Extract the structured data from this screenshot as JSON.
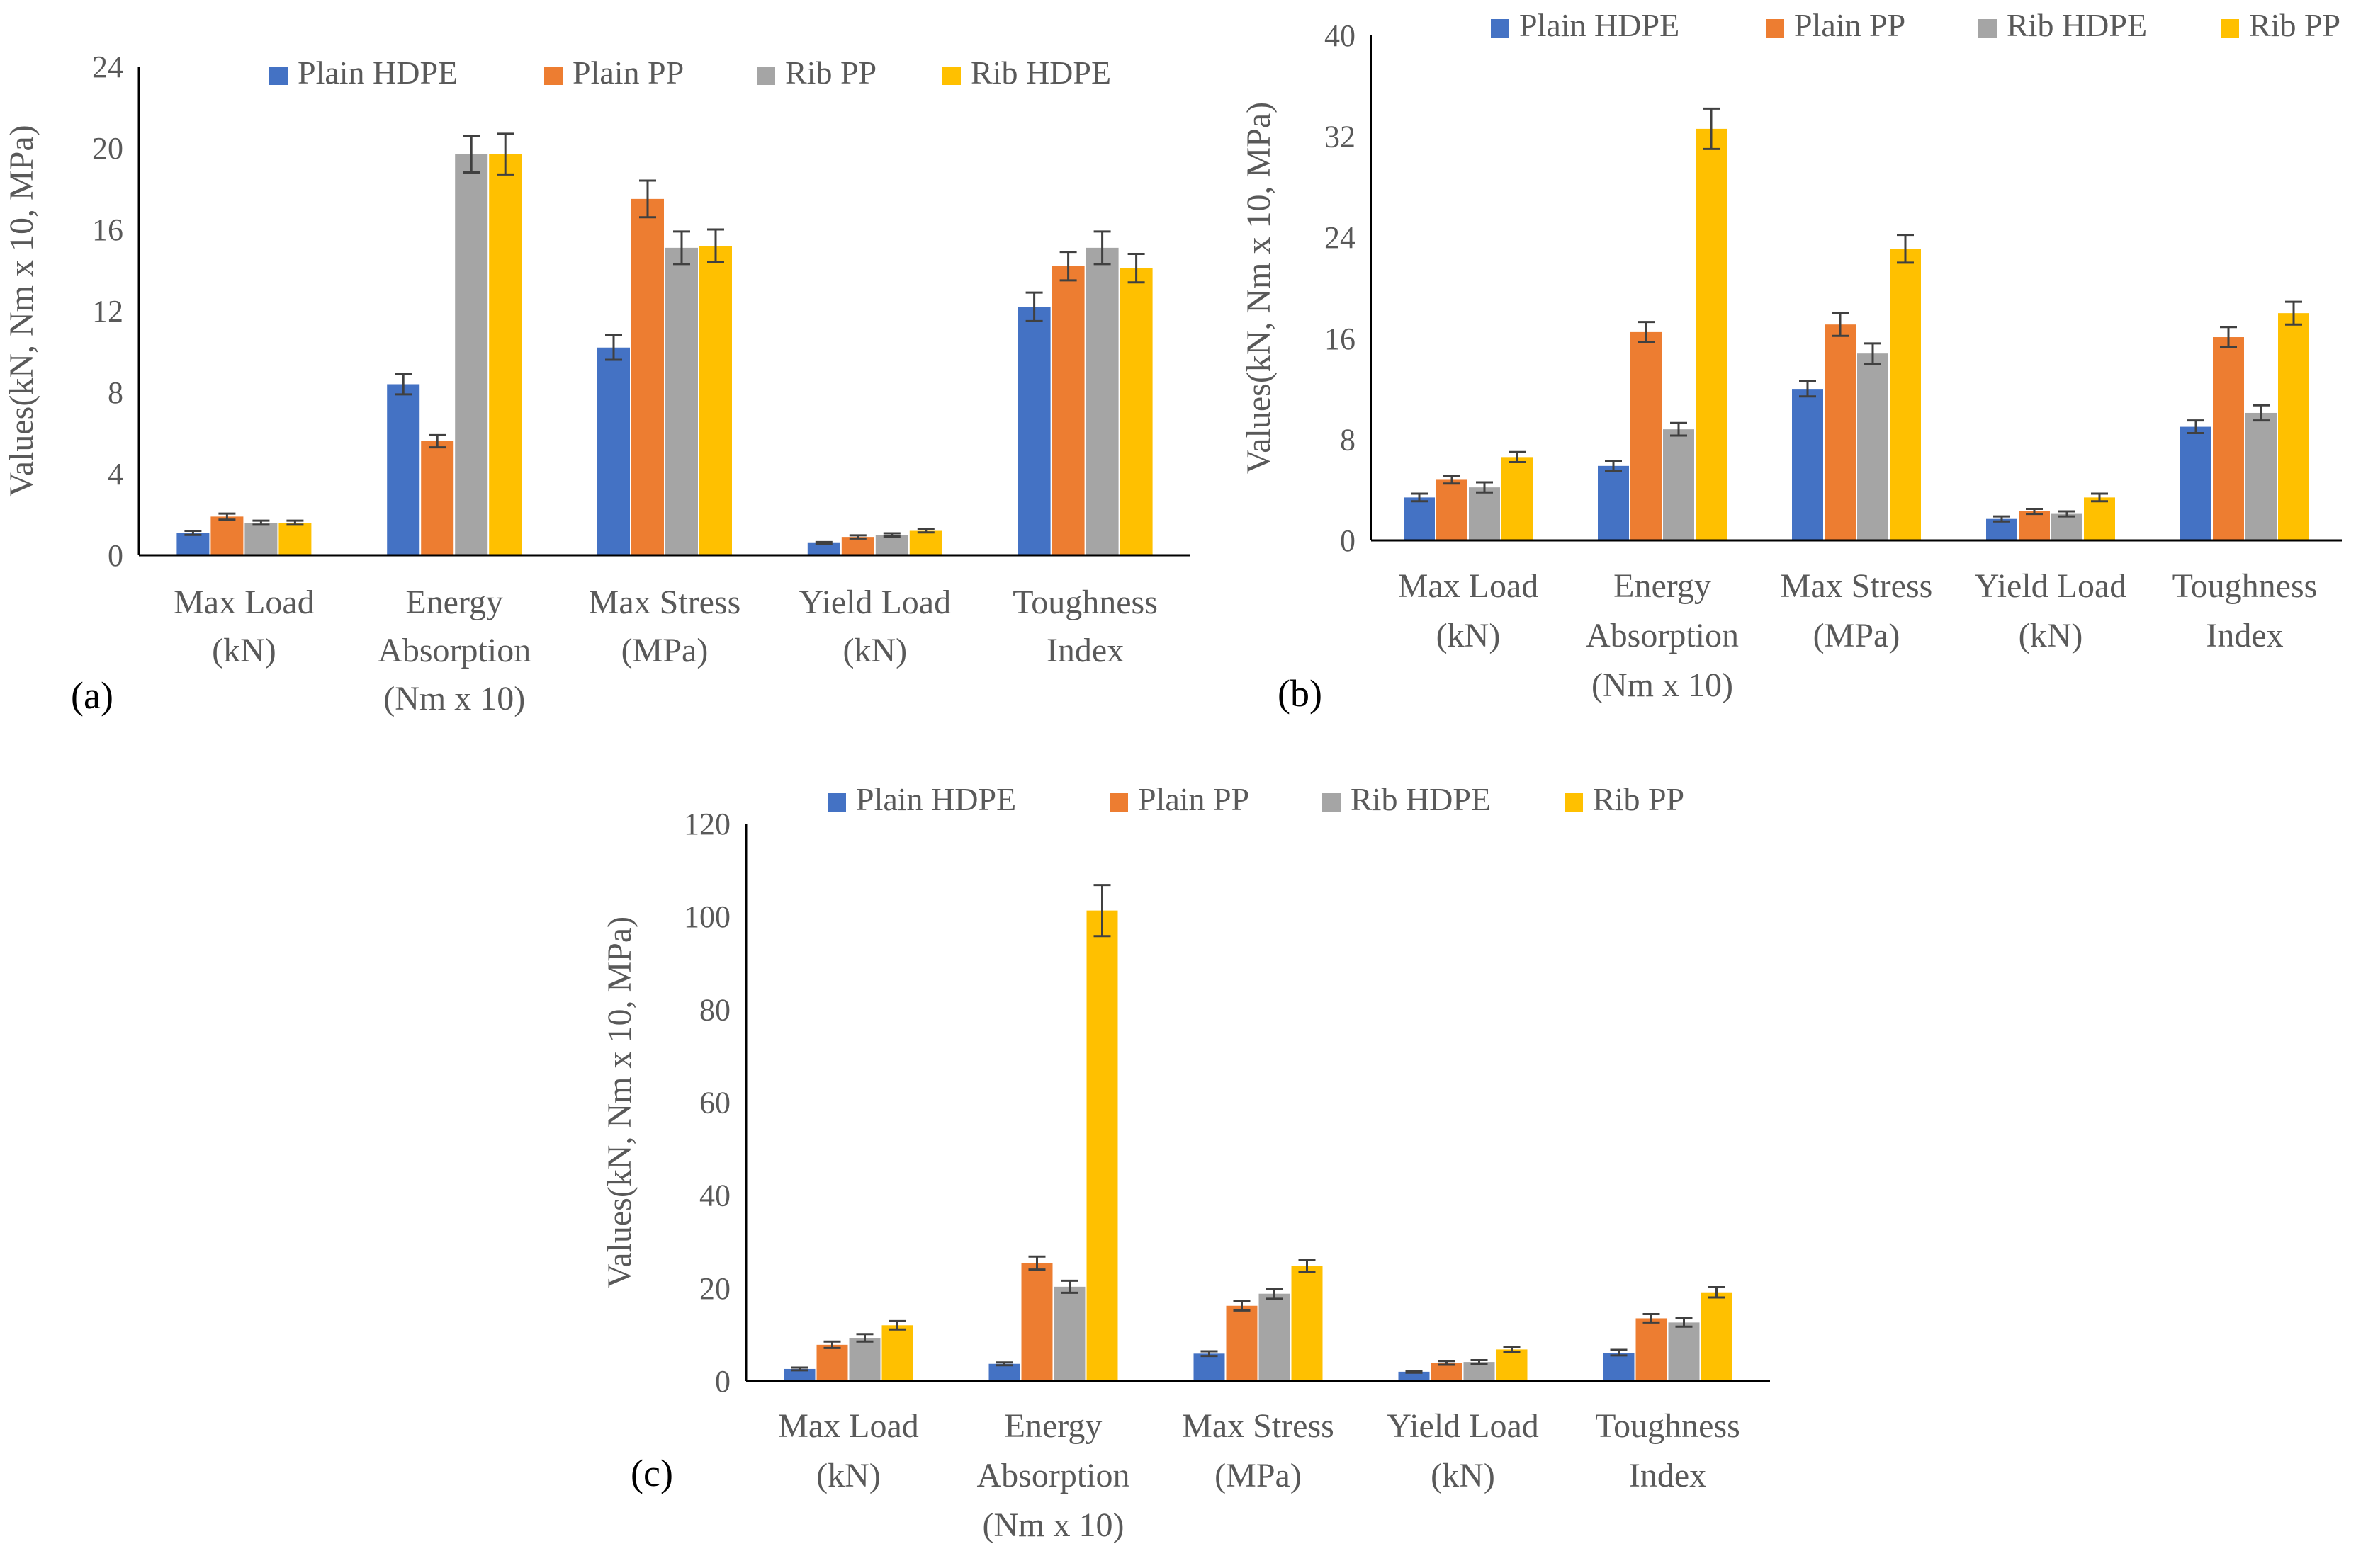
{
  "chart_data": [
    {
      "id": "a",
      "type": "bar",
      "panel_label": "(a)",
      "ylabel": "Values(kN, Nm x 10, MPa)",
      "ylim": [
        0,
        24
      ],
      "yticks": [
        "0",
        "4",
        "8",
        "12",
        "16",
        "20",
        "24"
      ],
      "grid": false,
      "legend_placement": "top",
      "categories": [
        [
          "Max Load",
          "(kN)"
        ],
        [
          "Energy",
          "Absorption",
          "(Nm x 10)"
        ],
        [
          "Max Stress",
          "(MPa)"
        ],
        [
          "Yield Load",
          "(kN)"
        ],
        [
          "Toughness",
          "Index"
        ]
      ],
      "series": [
        {
          "name": "Plain HDPE",
          "color": "#4472C4",
          "values": [
            1.1,
            8.4,
            10.2,
            0.6,
            12.2
          ],
          "errors": [
            0.1,
            0.5,
            0.6,
            0.05,
            0.7
          ]
        },
        {
          "name": "Plain PP",
          "color": "#ED7D31",
          "values": [
            1.9,
            5.6,
            17.5,
            0.9,
            14.2
          ],
          "errors": [
            0.15,
            0.3,
            0.9,
            0.08,
            0.7
          ]
        },
        {
          "name": "Rib PP",
          "color": "#A5A5A5",
          "values": [
            1.6,
            19.7,
            15.1,
            1.0,
            15.1
          ],
          "errors": [
            0.1,
            0.9,
            0.8,
            0.08,
            0.8
          ]
        },
        {
          "name": "Rib HDPE",
          "color": "#FFC000",
          "values": [
            1.6,
            19.7,
            15.2,
            1.2,
            14.1
          ],
          "errors": [
            0.1,
            1.0,
            0.8,
            0.08,
            0.7
          ]
        }
      ]
    },
    {
      "id": "b",
      "type": "bar",
      "panel_label": "(b)",
      "ylabel": "Values(kN, Nm x 10, MPa)",
      "ylim": [
        0,
        40
      ],
      "yticks": [
        "0",
        "8",
        "16",
        "24",
        "32",
        "40"
      ],
      "grid": false,
      "legend_placement": "top",
      "categories": [
        [
          "Max Load",
          "(kN)"
        ],
        [
          "Energy",
          "Absorption",
          "(Nm x 10)"
        ],
        [
          "Max Stress",
          "(MPa)"
        ],
        [
          "Yield Load",
          "(kN)"
        ],
        [
          "Toughness",
          "Index"
        ]
      ],
      "series": [
        {
          "name": "Plain HDPE",
          "color": "#4472C4",
          "values": [
            3.4,
            5.9,
            12.0,
            1.7,
            9.0
          ],
          "errors": [
            0.3,
            0.4,
            0.6,
            0.2,
            0.5
          ]
        },
        {
          "name": "Plain PP",
          "color": "#ED7D31",
          "values": [
            4.8,
            16.5,
            17.1,
            2.3,
            16.1
          ],
          "errors": [
            0.3,
            0.8,
            0.9,
            0.2,
            0.8
          ]
        },
        {
          "name": "Rib HDPE",
          "color": "#A5A5A5",
          "values": [
            4.2,
            8.8,
            14.8,
            2.1,
            10.1
          ],
          "errors": [
            0.4,
            0.5,
            0.8,
            0.2,
            0.6
          ]
        },
        {
          "name": "Rib PP",
          "color": "#FFC000",
          "values": [
            6.6,
            32.6,
            23.1,
            3.4,
            18.0
          ],
          "errors": [
            0.4,
            1.6,
            1.1,
            0.3,
            0.9
          ]
        }
      ]
    },
    {
      "id": "c",
      "type": "bar",
      "panel_label": "(c)",
      "ylabel": "Values(kN, Nm x 10, MPa)",
      "ylim": [
        0,
        120
      ],
      "yticks": [
        "0",
        "20",
        "40",
        "60",
        "80",
        "100",
        "120"
      ],
      "grid": false,
      "legend_placement": "top",
      "categories": [
        [
          "Max Load",
          "(kN)"
        ],
        [
          "Energy",
          "Absorption",
          "(Nm x 10)"
        ],
        [
          "Max Stress",
          "(MPa)"
        ],
        [
          "Yield Load",
          "(kN)"
        ],
        [
          "Toughness",
          "Index"
        ]
      ],
      "series": [
        {
          "name": "Plain HDPE",
          "color": "#4472C4",
          "values": [
            2.6,
            3.7,
            5.9,
            2.0,
            6.1
          ],
          "errors": [
            0.3,
            0.3,
            0.5,
            0.2,
            0.6
          ]
        },
        {
          "name": "Plain PP",
          "color": "#ED7D31",
          "values": [
            7.8,
            25.4,
            16.2,
            3.9,
            13.5
          ],
          "errors": [
            0.7,
            1.4,
            1.0,
            0.4,
            0.9
          ]
        },
        {
          "name": "Rib HDPE",
          "color": "#A5A5A5",
          "values": [
            9.3,
            20.3,
            18.8,
            4.1,
            12.6
          ],
          "errors": [
            0.8,
            1.3,
            1.1,
            0.4,
            0.9
          ]
        },
        {
          "name": "Rib PP",
          "color": "#FFC000",
          "values": [
            12.0,
            101.3,
            24.8,
            6.8,
            19.1
          ],
          "errors": [
            0.9,
            5.5,
            1.3,
            0.5,
            1.1
          ]
        }
      ]
    }
  ]
}
